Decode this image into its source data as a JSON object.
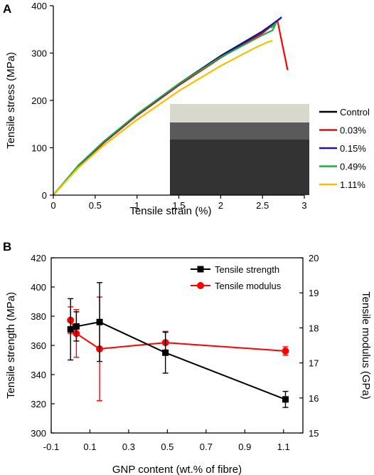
{
  "chart_data": [
    {
      "panel": "A",
      "type": "line",
      "xlabel": "Tensile strain (%)",
      "ylabel": "Tensile stress (MPa)",
      "xlim": [
        0,
        3
      ],
      "ylim": [
        0,
        400
      ],
      "xticks": [
        "0",
        "0.5",
        "1",
        "1.5",
        "2",
        "2.5",
        "3"
      ],
      "yticks": [
        "0",
        "100",
        "200",
        "300",
        "400"
      ],
      "legend_position": "right",
      "inset_image": "photo of woven carbon fibre composite specimen",
      "series": [
        {
          "name": "Control",
          "color": "#000000",
          "points": [
            [
              0,
              0
            ],
            [
              0.3,
              62
            ],
            [
              0.6,
              112
            ],
            [
              1.0,
              170
            ],
            [
              1.5,
              235
            ],
            [
              2.0,
              294
            ],
            [
              2.5,
              346
            ],
            [
              2.72,
              374
            ]
          ]
        },
        {
          "name": "0.03%",
          "color": "#ff0000",
          "points": [
            [
              0,
              0
            ],
            [
              0.3,
              61
            ],
            [
              0.6,
              110
            ],
            [
              1.0,
              168
            ],
            [
              1.5,
              232
            ],
            [
              2.0,
              290
            ],
            [
              2.5,
              342
            ],
            [
              2.68,
              368
            ],
            [
              2.8,
              264
            ]
          ]
        },
        {
          "name": "0.15%",
          "color": "#1a1aa0",
          "points": [
            [
              0,
              0
            ],
            [
              0.3,
              62
            ],
            [
              0.6,
              112
            ],
            [
              1.0,
              170
            ],
            [
              1.5,
              234
            ],
            [
              2.0,
              293
            ],
            [
              2.5,
              345
            ],
            [
              2.73,
              376
            ]
          ]
        },
        {
          "name": "0.49%",
          "color": "#22a84a",
          "points": [
            [
              0,
              0
            ],
            [
              0.3,
              63
            ],
            [
              0.6,
              113
            ],
            [
              1.0,
              171
            ],
            [
              1.5,
              235
            ],
            [
              2.0,
              291
            ],
            [
              2.5,
              338
            ],
            [
              2.62,
              348
            ],
            [
              2.66,
              363
            ],
            [
              2.6,
              353
            ]
          ]
        },
        {
          "name": "1.11%",
          "color": "#f5c000",
          "points": [
            [
              0,
              0
            ],
            [
              0.3,
              58
            ],
            [
              0.6,
              105
            ],
            [
              1.0,
              159
            ],
            [
              1.5,
              220
            ],
            [
              2.0,
              273
            ],
            [
              2.4,
              310
            ],
            [
              2.5,
              318
            ],
            [
              2.56,
              323
            ],
            [
              2.62,
              326
            ]
          ]
        }
      ]
    },
    {
      "panel": "B",
      "type": "line",
      "xlabel": "GNP content (wt.% of fibre)",
      "ylabel": "Tensile strength (MPa)",
      "ylabel_right": "Tensile modulus (GPa)",
      "xlim": [
        -0.1,
        1.2
      ],
      "ylim": [
        300,
        420
      ],
      "ylim_right": [
        15,
        20
      ],
      "xticks": [
        "-0.1",
        "0.1",
        "0.3",
        "0.5",
        "0.7",
        "0.9",
        "1.1"
      ],
      "yticks": [
        "300",
        "320",
        "340",
        "360",
        "380",
        "400",
        "420"
      ],
      "yticks_right": [
        "15",
        "16",
        "17",
        "18",
        "19",
        "20"
      ],
      "legend_position": "top-right",
      "x": [
        0,
        0.03,
        0.15,
        0.49,
        1.11
      ],
      "series": [
        {
          "name": "Tensile strength",
          "axis": "left",
          "color": "#000000",
          "marker": "square",
          "values": [
            371,
            373,
            376,
            355,
            323
          ],
          "error": [
            21,
            10,
            27,
            14,
            5.5
          ]
        },
        {
          "name": "Tensile modulus",
          "axis": "right",
          "color": "#ff0000",
          "marker": "circle",
          "values": [
            18.22,
            17.84,
            17.4,
            17.58,
            17.34
          ],
          "error": [
            0.38,
            0.68,
            1.48,
            0.32,
            0.12
          ]
        }
      ]
    }
  ]
}
